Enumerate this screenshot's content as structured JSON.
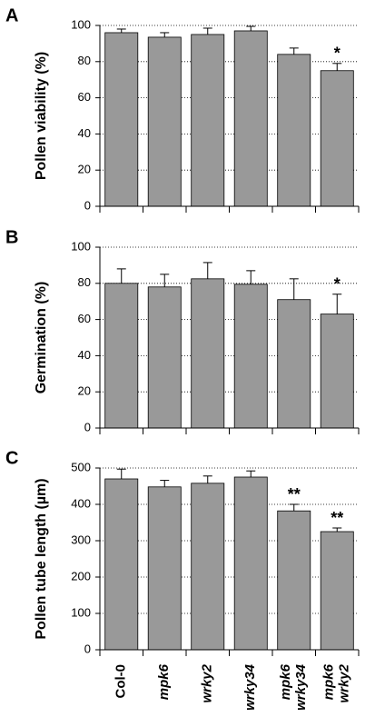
{
  "chart_data": [
    {
      "type": "bar",
      "panel": "A",
      "ylabel": "Pollen viability (%)",
      "values": [
        96,
        93.5,
        95,
        97,
        84,
        75
      ],
      "errors": [
        2,
        2.5,
        3.5,
        2.5,
        3.5,
        4
      ],
      "value_annotations": [
        null,
        null,
        null,
        null,
        null,
        "*"
      ],
      "color": "#999999",
      "ylim": [
        0,
        100
      ],
      "yticks": [
        0,
        20,
        40,
        60,
        80,
        100
      ],
      "grid": true
    },
    {
      "type": "bar",
      "panel": "B",
      "ylabel": "Germination (%)",
      "values": [
        80,
        78,
        82.5,
        79.5,
        71,
        63
      ],
      "errors": [
        8,
        7,
        9,
        7.5,
        11.5,
        11
      ],
      "value_annotations": [
        null,
        null,
        null,
        null,
        null,
        "*"
      ],
      "color": "#999999",
      "ylim": [
        0,
        100
      ],
      "yticks": [
        0,
        20,
        40,
        60,
        80,
        100
      ],
      "grid": true
    },
    {
      "type": "bar",
      "panel": "C",
      "ylabel": "Pollen tube length (µm)",
      "categories": [
        "Col-0",
        "mpk6",
        "wrky2",
        "wrky34",
        [
          "mpk6",
          "wrky34"
        ],
        [
          "mpk6",
          "wrky2"
        ]
      ],
      "values": [
        470,
        448,
        458,
        475,
        382,
        325
      ],
      "errors": [
        27,
        18,
        20,
        17,
        18,
        10
      ],
      "value_annotations": [
        null,
        null,
        null,
        null,
        "**",
        "**"
      ],
      "color": "#999999",
      "ylim": [
        0,
        500
      ],
      "yticks": [
        0,
        100,
        200,
        300,
        400,
        500
      ],
      "grid": true
    }
  ]
}
